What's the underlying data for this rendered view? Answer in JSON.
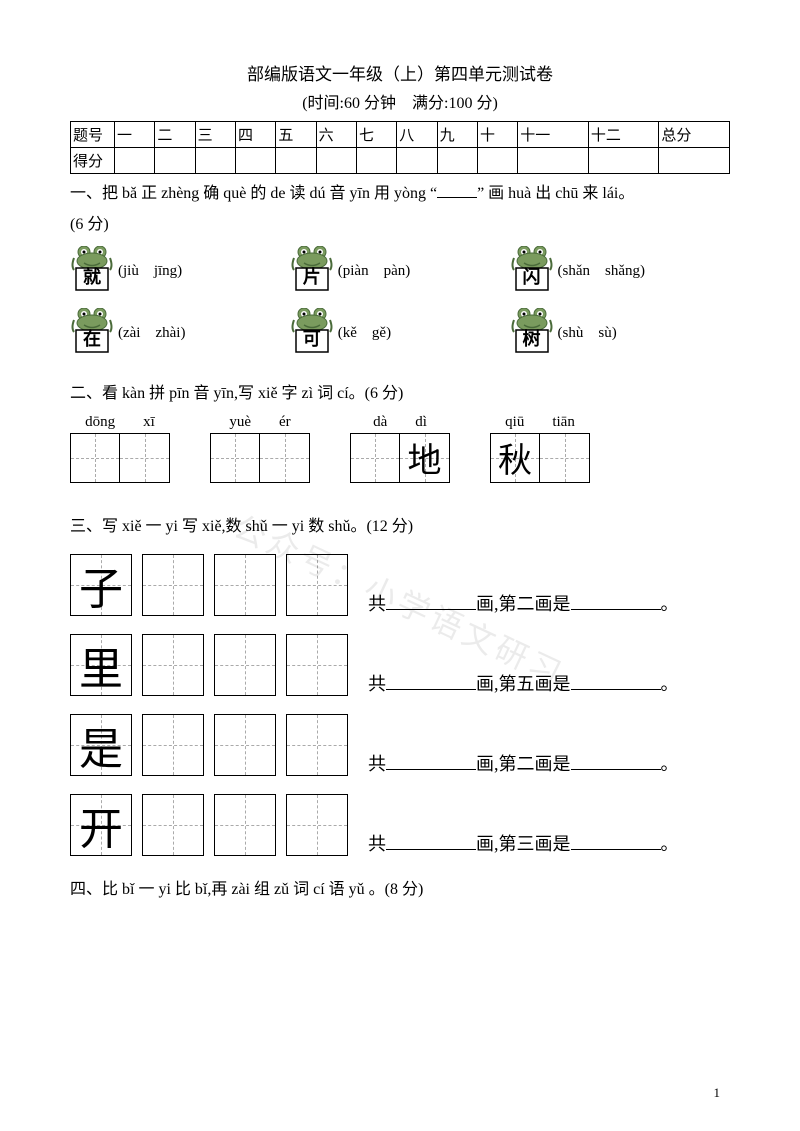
{
  "header": {
    "title": "部编版语文一年级（上）第四单元测试卷",
    "subtitle": "(时间:60 分钟　满分:100 分)"
  },
  "scoreTable": {
    "row1Label": "题号",
    "row2Label": "得分",
    "cols": [
      "一",
      "二",
      "三",
      "四",
      "五",
      "六",
      "七",
      "八",
      "九",
      "十",
      "十一",
      "十二",
      "总分"
    ]
  },
  "q1": {
    "prefix": "一、把 bǎ 正 zhèng 确 què 的 de 读 dú 音 yīn 用 yòng “",
    "suffix": "” 画 huà 出 chū 来 lái。",
    "points": "(6 分)",
    "items": [
      {
        "char": "就",
        "opts": "(jiù　jīng)"
      },
      {
        "char": "片",
        "opts": "(piàn　pàn)"
      },
      {
        "char": "闪",
        "opts": "(shǎn　shǎng)"
      },
      {
        "char": "在",
        "opts": "(zài　zhài)"
      },
      {
        "char": "可",
        "opts": "(kě　gě)"
      },
      {
        "char": "树",
        "opts": "(shù　sù)"
      }
    ]
  },
  "q2": {
    "text": "二、看 kàn 拼 pīn 音 yīn,写 xiě 字 zì 词 cí。(6 分)",
    "items": [
      {
        "p1": "dōng",
        "p2": "xī",
        "c1": "",
        "c2": ""
      },
      {
        "p1": "yuè",
        "p2": "ér",
        "c1": "",
        "c2": ""
      },
      {
        "p1": "dà",
        "p2": "dì",
        "c1": "",
        "c2": "地"
      },
      {
        "p1": "qiū",
        "p2": "tiān",
        "c1": "秋",
        "c2": ""
      }
    ]
  },
  "q3": {
    "text": "三、写 xiě 一 yi 写 xiě,数 shǔ 一 yi 数 shǔ。(12 分)",
    "rows": [
      {
        "char": "子",
        "label1": "共",
        "label2": "画,第二画是",
        "label3": "。"
      },
      {
        "char": "里",
        "label1": "共",
        "label2": "画,第五画是",
        "label3": "。"
      },
      {
        "char": "是",
        "label1": "共",
        "label2": "画,第二画是",
        "label3": "。"
      },
      {
        "char": "开",
        "label1": "共",
        "label2": "画,第三画是",
        "label3": "。"
      }
    ]
  },
  "q4": {
    "text": "四、比 bǐ 一 yi 比 bǐ,再 zài 组 zǔ 词 cí 语 yǔ 。(8 分)"
  },
  "watermark": "公众号：小学语文研习",
  "pageNum": "1",
  "colors": {
    "text": "#000000",
    "bg": "#ffffff",
    "dash": "#aaaaaa",
    "frog": "#7a9b5e",
    "frogDark": "#4a6b3a"
  }
}
